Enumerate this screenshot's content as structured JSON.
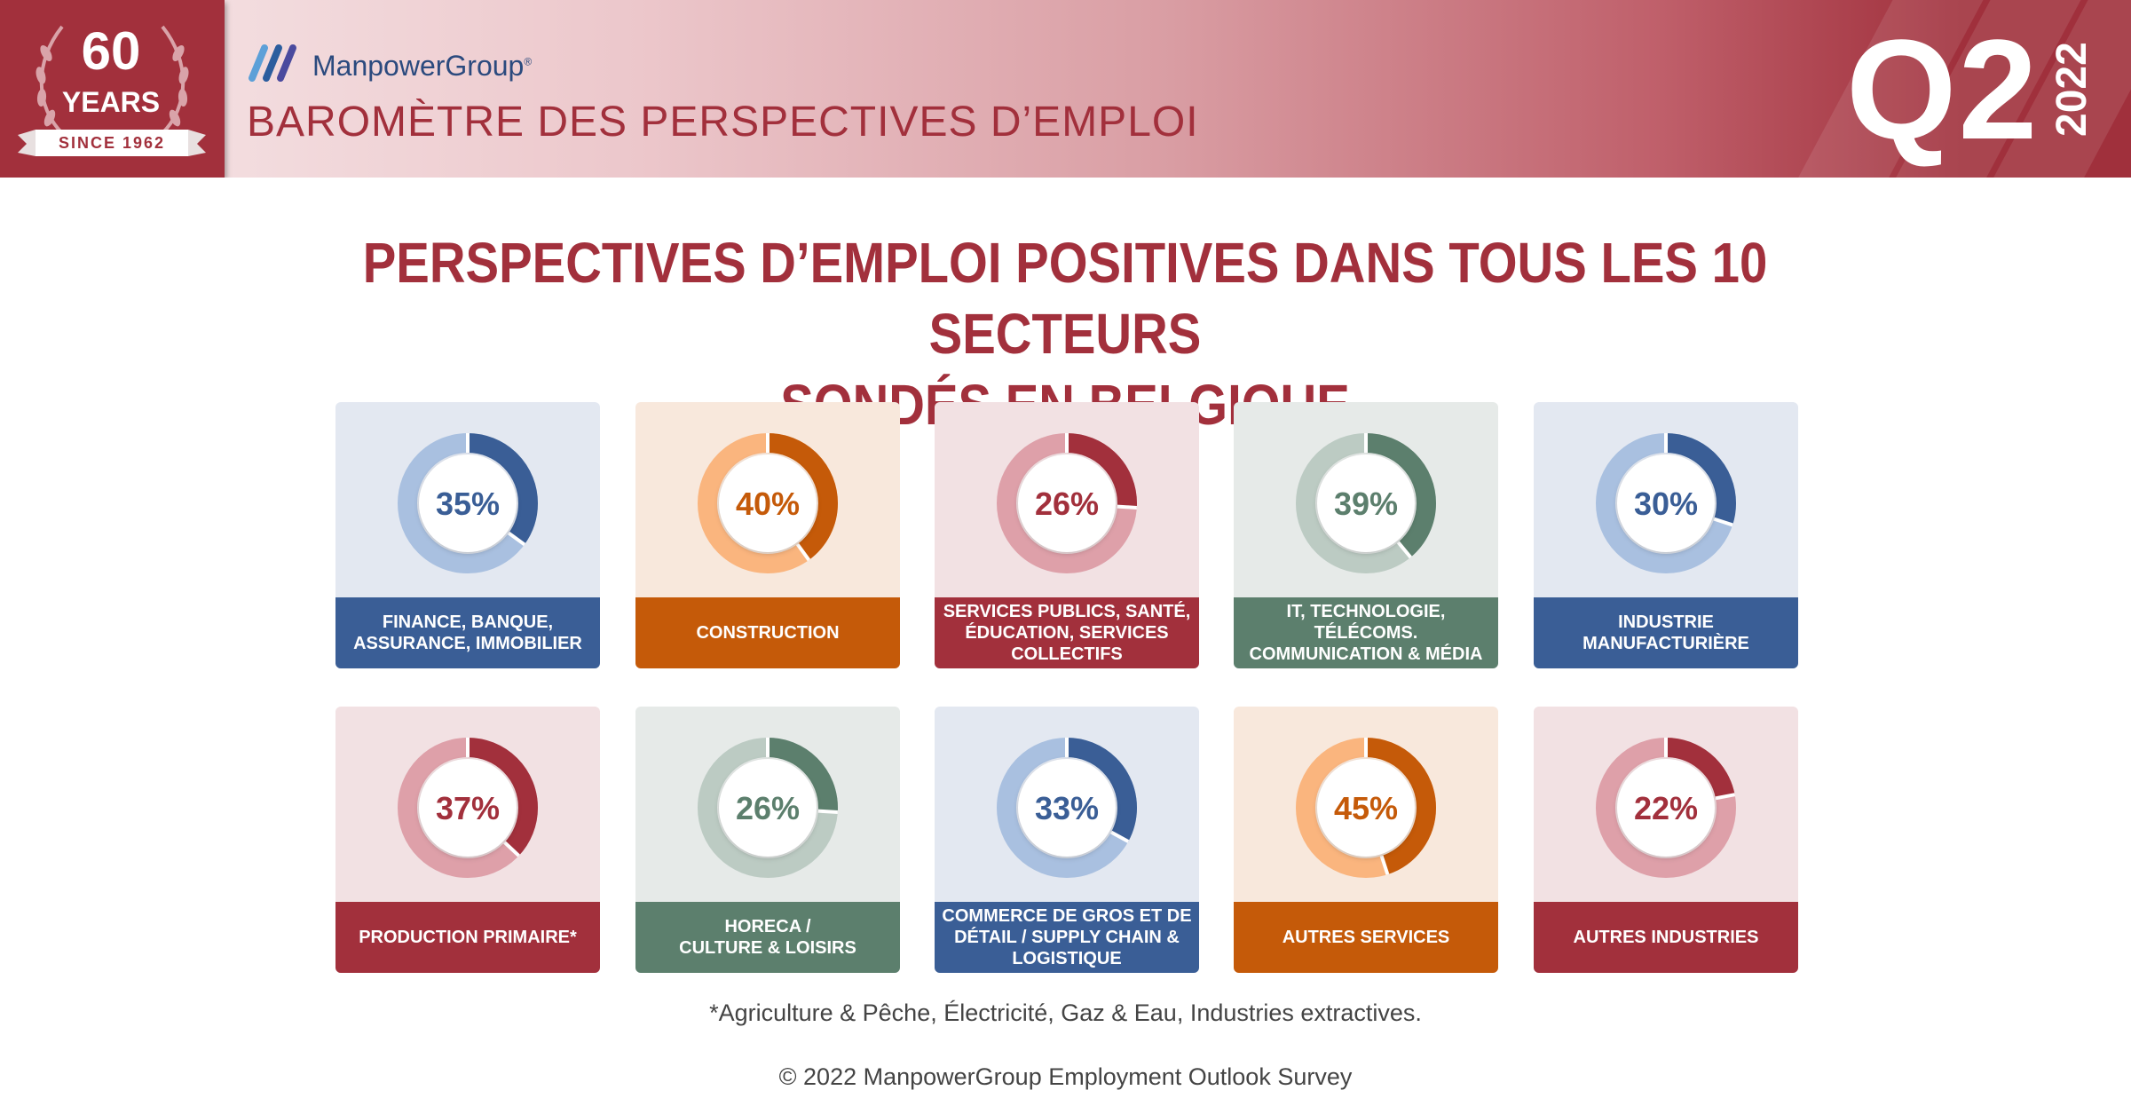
{
  "header": {
    "badge_number": "60",
    "badge_years": "YEARS",
    "badge_since": "SINCE 1962",
    "brand_name": "ManpowerGroup",
    "brand_trademark": "®",
    "title": "BAROMÈTRE DES PERSPECTIVES D’EMPLOI",
    "quarter": "Q2",
    "year": "2022"
  },
  "main_title_line1": "PERSPECTIVES D’EMPLOI POSITIVES DANS TOUS LES 10 SECTEURS",
  "main_title_line2": "SONDÉS EN BELGIQUE",
  "colors": {
    "blue": "#3a5e96",
    "orange": "#c55a09",
    "red": "#a2303c",
    "green": "#5c7f6d"
  },
  "chart_data": {
    "type": "pie",
    "variant": "donut",
    "unit": "%",
    "sectors": [
      {
        "label": "FINANCE, BANQUE,\nASSURANCE, IMMOBILIER",
        "value": 35,
        "value_label": "35%",
        "theme": "blue"
      },
      {
        "label": "CONSTRUCTION",
        "value": 40,
        "value_label": "40%",
        "theme": "orange"
      },
      {
        "label": "SERVICES PUBLICS, SANTÉ,\nÉDUCATION, SERVICES\nCOLLECTIFS",
        "value": 26,
        "value_label": "26%",
        "theme": "red"
      },
      {
        "label": "IT, TECHNOLOGIE,\nTÉLÉCOMS.\nCOMMUNICATION & MÉDIA",
        "value": 39,
        "value_label": "39%",
        "theme": "green"
      },
      {
        "label": "INDUSTRIE\nMANUFACTURIÈRE",
        "value": 30,
        "value_label": "30%",
        "theme": "blue"
      },
      {
        "label": "PRODUCTION PRIMAIRE*",
        "value": 37,
        "value_label": "37%",
        "theme": "red"
      },
      {
        "label": "HORECA /\nCULTURE & LOISIRS",
        "value": 26,
        "value_label": "26%",
        "theme": "green"
      },
      {
        "label": "COMMERCE DE GROS ET DE\nDÉTAIL / SUPPLY CHAIN &\nLOGISTIQUE",
        "value": 33,
        "value_label": "33%",
        "theme": "blue"
      },
      {
        "label": "AUTRES SERVICES",
        "value": 45,
        "value_label": "45%",
        "theme": "orange"
      },
      {
        "label": "AUTRES INDUSTRIES",
        "value": 22,
        "value_label": "22%",
        "theme": "red"
      }
    ]
  },
  "footnote": "*Agriculture & Pêche, Électricité, Gaz & Eau, Industries extractives.",
  "copyright": "© 2022 ManpowerGroup Employment Outlook Survey"
}
